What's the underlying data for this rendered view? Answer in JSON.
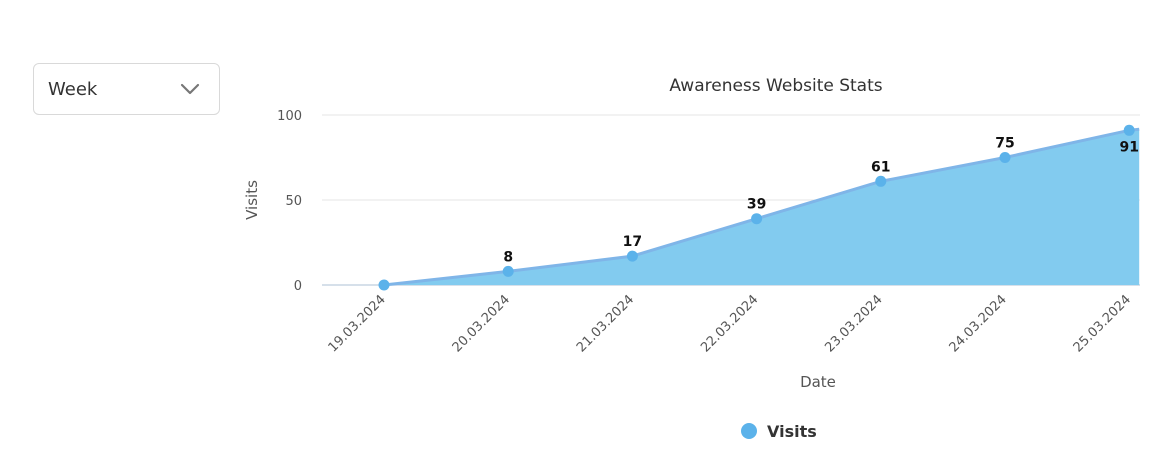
{
  "filter": {
    "selected": "Week",
    "icon": "chevron-down-icon"
  },
  "colors": {
    "area": "#82cbef",
    "line": "#7fb5e8",
    "marker": "#5bb2ea",
    "grid": "#e6e6e6",
    "axis": "#c9d6e3"
  },
  "chart_data": {
    "type": "area",
    "title": "Awareness Website Stats",
    "xlabel": "Date",
    "ylabel": "Visits",
    "x": [
      "19.03.2024",
      "20.03.2024",
      "21.03.2024",
      "22.03.2024",
      "23.03.2024",
      "24.03.2024",
      "25.03.2024"
    ],
    "series": [
      {
        "name": "Visits",
        "values": [
          0,
          8,
          17,
          39,
          61,
          75,
          91
        ]
      }
    ],
    "data_labels": [
      "",
      "8",
      "17",
      "39",
      "61",
      "75",
      "91"
    ],
    "ylim": [
      0,
      100
    ],
    "yticks": [
      0,
      50,
      100
    ],
    "grid": true,
    "legend": "bottom-center"
  }
}
